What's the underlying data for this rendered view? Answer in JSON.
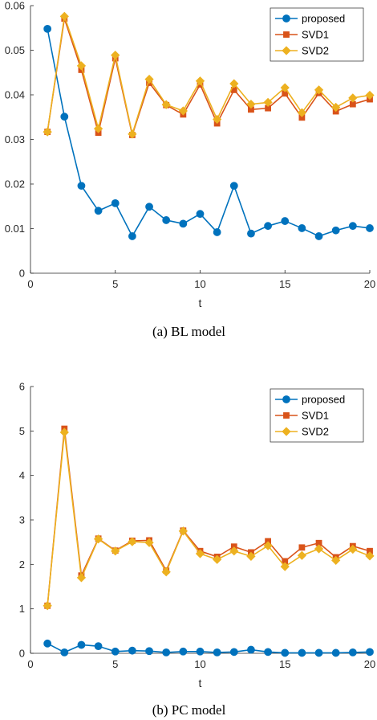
{
  "chart_data": [
    {
      "type": "line",
      "caption": "(a)  BL model",
      "xlabel": "t",
      "ylabel": "",
      "xlim": [
        0,
        20
      ],
      "ylim": [
        0,
        0.06
      ],
      "xticks": [
        "0",
        "5",
        "10",
        "15",
        "20"
      ],
      "yticks": [
        "0",
        "0.01",
        "0.02",
        "0.03",
        "0.04",
        "0.05",
        "0.06"
      ],
      "legend_position": "top-right",
      "x": [
        1,
        2,
        3,
        4,
        5,
        6,
        7,
        8,
        9,
        10,
        11,
        12,
        13,
        14,
        15,
        16,
        17,
        18,
        19,
        20
      ],
      "series": [
        {
          "name": "proposed",
          "color": "#0072BD",
          "marker": "circle",
          "values": [
            0.0548,
            0.0351,
            0.0196,
            0.014,
            0.0157,
            0.0083,
            0.0149,
            0.0119,
            0.0111,
            0.0133,
            0.0092,
            0.0196,
            0.0089,
            0.0106,
            0.0117,
            0.0101,
            0.0083,
            0.0096,
            0.0106,
            0.0101
          ]
        },
        {
          "name": "SVD1",
          "color": "#D95319",
          "marker": "square",
          "values": [
            0.0317,
            0.0571,
            0.0456,
            0.0315,
            0.0482,
            0.031,
            0.0427,
            0.0377,
            0.0356,
            0.0423,
            0.0336,
            0.0411,
            0.0367,
            0.037,
            0.0403,
            0.0349,
            0.0404,
            0.0363,
            0.0379,
            0.039
          ]
        },
        {
          "name": "SVD2",
          "color": "#EDB120",
          "marker": "diamond",
          "values": [
            0.0317,
            0.0576,
            0.0465,
            0.0324,
            0.0489,
            0.0312,
            0.0435,
            0.0378,
            0.0364,
            0.0431,
            0.0345,
            0.0425,
            0.0379,
            0.0383,
            0.0416,
            0.036,
            0.0411,
            0.0372,
            0.0393,
            0.0399
          ]
        }
      ]
    },
    {
      "type": "line",
      "caption": "(b)  PC model",
      "xlabel": "t",
      "ylabel": "",
      "xlim": [
        0,
        20
      ],
      "ylim": [
        0,
        6
      ],
      "xticks": [
        "0",
        "5",
        "10",
        "15",
        "20"
      ],
      "yticks": [
        "0",
        "1",
        "2",
        "3",
        "4",
        "5",
        "6"
      ],
      "legend_position": "top-right",
      "x": [
        1,
        2,
        3,
        4,
        5,
        6,
        7,
        8,
        9,
        10,
        11,
        12,
        13,
        14,
        15,
        16,
        17,
        18,
        19,
        20
      ],
      "series": [
        {
          "name": "proposed",
          "color": "#0072BD",
          "marker": "circle",
          "values": [
            0.22,
            0.02,
            0.19,
            0.16,
            0.04,
            0.06,
            0.05,
            0.02,
            0.04,
            0.04,
            0.02,
            0.03,
            0.08,
            0.03,
            0.01,
            0.01,
            0.01,
            0.01,
            0.02,
            0.03
          ]
        },
        {
          "name": "SVD1",
          "color": "#D95319",
          "marker": "square",
          "values": [
            1.07,
            5.05,
            1.75,
            2.58,
            2.31,
            2.53,
            2.54,
            1.86,
            2.76,
            2.3,
            2.17,
            2.4,
            2.27,
            2.52,
            2.07,
            2.38,
            2.48,
            2.16,
            2.41,
            2.3
          ]
        },
        {
          "name": "SVD2",
          "color": "#EDB120",
          "marker": "diamond",
          "values": [
            1.07,
            4.97,
            1.7,
            2.57,
            2.3,
            2.51,
            2.49,
            1.83,
            2.75,
            2.24,
            2.11,
            2.3,
            2.18,
            2.42,
            1.95,
            2.2,
            2.35,
            2.09,
            2.34,
            2.19
          ]
        }
      ]
    }
  ]
}
